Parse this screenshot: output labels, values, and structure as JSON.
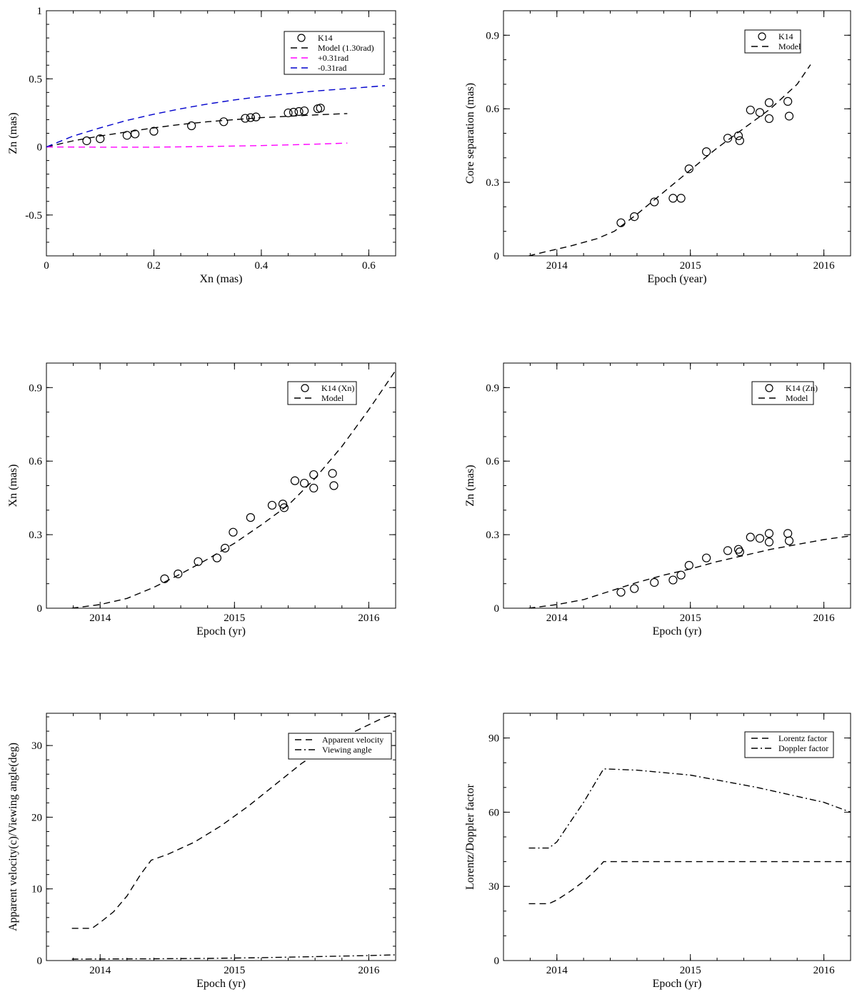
{
  "chart_data": [
    {
      "id": "p1",
      "type": "scatter",
      "xlabel": "Xn (mas)",
      "ylabel": "Zn (mas)",
      "xlim": [
        0,
        0.65
      ],
      "ylim": [
        -0.8,
        1.0
      ],
      "xticks": [
        0,
        0.2,
        0.4,
        0.6
      ],
      "xtick_labels": [
        "0",
        "0.2",
        "0.4",
        "0.6"
      ],
      "yticks": [
        -0.5,
        0,
        0.5,
        1
      ],
      "ytick_labels": [
        "-0.5",
        "0",
        "0.5",
        "1"
      ],
      "xminor": 0.05,
      "yminor": 0.1,
      "legend": [
        {
          "label": "K14",
          "style": "circle",
          "color": "#000000"
        },
        {
          "label": "Model (1.30rad)",
          "style": "dashed",
          "color": "#000000"
        },
        {
          "label": "+0.31rad",
          "style": "dashed",
          "color": "#ff00ff"
        },
        {
          "label": "-0.31rad",
          "style": "dashed",
          "color": "#0000cc"
        }
      ],
      "series": [
        {
          "name": "K14",
          "style": "circle",
          "color": "#000000",
          "x": [
            0.075,
            0.1,
            0.15,
            0.165,
            0.2,
            0.27,
            0.33,
            0.37,
            0.38,
            0.39,
            0.45,
            0.46,
            0.47,
            0.48,
            0.505,
            0.51
          ],
          "y": [
            0.045,
            0.06,
            0.085,
            0.095,
            0.115,
            0.155,
            0.185,
            0.21,
            0.215,
            0.22,
            0.25,
            0.255,
            0.26,
            0.265,
            0.28,
            0.285
          ]
        },
        {
          "name": "Model (1.30rad)",
          "style": "dashed",
          "color": "#000000",
          "x": [
            0,
            0.05,
            0.1,
            0.15,
            0.2,
            0.25,
            0.3,
            0.35,
            0.4,
            0.45,
            0.5,
            0.56
          ],
          "y": [
            0,
            0.045,
            0.08,
            0.11,
            0.14,
            0.165,
            0.185,
            0.2,
            0.215,
            0.225,
            0.235,
            0.245
          ]
        },
        {
          "name": "+0.31rad",
          "style": "dashed",
          "color": "#ff00ff",
          "x": [
            0,
            0.1,
            0.2,
            0.3,
            0.4,
            0.5,
            0.56
          ],
          "y": [
            0,
            -0.002,
            -0.002,
            0.003,
            0.01,
            0.02,
            0.028
          ]
        },
        {
          "name": "-0.31rad",
          "style": "dashed",
          "color": "#0000cc",
          "x": [
            0,
            0.05,
            0.1,
            0.15,
            0.2,
            0.25,
            0.3,
            0.35,
            0.4,
            0.45,
            0.5,
            0.55,
            0.6,
            0.63
          ],
          "y": [
            0,
            0.08,
            0.14,
            0.195,
            0.24,
            0.28,
            0.315,
            0.345,
            0.37,
            0.39,
            0.41,
            0.425,
            0.44,
            0.45
          ]
        }
      ]
    },
    {
      "id": "p2",
      "type": "scatter",
      "xlabel": "Epoch (year)",
      "ylabel": "Core separation (mas)",
      "xlim": [
        2013.6,
        2016.2
      ],
      "ylim": [
        0,
        1.0
      ],
      "xticks": [
        2014,
        2015,
        2016
      ],
      "xtick_labels": [
        "2014",
        "2015",
        "2016"
      ],
      "yticks": [
        0,
        0.3,
        0.6,
        0.9
      ],
      "ytick_labels": [
        "0",
        "0.3",
        "0.6",
        "0.9"
      ],
      "xminor": 0.2,
      "yminor": 0.1,
      "legend": [
        {
          "label": "K14",
          "style": "circle",
          "color": "#000000"
        },
        {
          "label": "Model",
          "style": "dashed",
          "color": "#000000"
        }
      ],
      "series": [
        {
          "name": "K14",
          "style": "circle",
          "color": "#000000",
          "x": [
            2014.48,
            2014.58,
            2014.73,
            2014.87,
            2014.93,
            2014.99,
            2015.12,
            2015.28,
            2015.36,
            2015.37,
            2015.45,
            2015.52,
            2015.59,
            2015.59,
            2015.73,
            2015.74
          ],
          "y": [
            0.135,
            0.16,
            0.22,
            0.235,
            0.235,
            0.355,
            0.425,
            0.48,
            0.49,
            0.47,
            0.595,
            0.585,
            0.625,
            0.56,
            0.63,
            0.57
          ]
        },
        {
          "name": "Model",
          "style": "dashed",
          "color": "#000000",
          "x": [
            2013.79,
            2013.9,
            2014.1,
            2014.3,
            2014.43,
            2014.6,
            2014.8,
            2015.0,
            2015.2,
            2015.4,
            2015.6,
            2015.8,
            2015.9
          ],
          "y": [
            0,
            0.015,
            0.04,
            0.07,
            0.1,
            0.17,
            0.26,
            0.35,
            0.44,
            0.52,
            0.6,
            0.7,
            0.78
          ]
        }
      ]
    },
    {
      "id": "p3",
      "type": "scatter",
      "xlabel": "Epoch (yr)",
      "ylabel": "Xn (mas)",
      "xlim": [
        2013.6,
        2016.2
      ],
      "ylim": [
        0,
        1.0
      ],
      "xticks": [
        2014,
        2015,
        2016
      ],
      "xtick_labels": [
        "2014",
        "2015",
        "2016"
      ],
      "yticks": [
        0,
        0.3,
        0.6,
        0.9
      ],
      "ytick_labels": [
        "0",
        "0.3",
        "0.6",
        "0.9"
      ],
      "xminor": 0.2,
      "yminor": 0.1,
      "legend": [
        {
          "label": "K14 (Xn)",
          "style": "circle",
          "color": "#000000"
        },
        {
          "label": "Model",
          "style": "dashed",
          "color": "#000000"
        }
      ],
      "series": [
        {
          "name": "K14 (Xn)",
          "style": "circle",
          "color": "#000000",
          "x": [
            2014.48,
            2014.58,
            2014.73,
            2014.87,
            2014.93,
            2014.99,
            2015.12,
            2015.28,
            2015.36,
            2015.37,
            2015.45,
            2015.52,
            2015.59,
            2015.59,
            2015.73,
            2015.74
          ],
          "y": [
            0.12,
            0.14,
            0.19,
            0.205,
            0.245,
            0.31,
            0.37,
            0.42,
            0.425,
            0.41,
            0.52,
            0.51,
            0.545,
            0.49,
            0.55,
            0.5
          ]
        },
        {
          "name": "Model",
          "style": "dashed",
          "color": "#000000",
          "x": [
            2013.79,
            2014.0,
            2014.2,
            2014.4,
            2014.6,
            2014.8,
            2015.0,
            2015.2,
            2015.4,
            2015.6,
            2015.8,
            2016.0,
            2016.2
          ],
          "y": [
            0,
            0.015,
            0.04,
            0.085,
            0.14,
            0.2,
            0.265,
            0.34,
            0.42,
            0.53,
            0.66,
            0.81,
            0.97
          ]
        }
      ]
    },
    {
      "id": "p4",
      "type": "scatter",
      "xlabel": "Epoch (yr)",
      "ylabel": "Zn (mas)",
      "xlim": [
        2013.6,
        2016.2
      ],
      "ylim": [
        0,
        1.0
      ],
      "xticks": [
        2014,
        2015,
        2016
      ],
      "xtick_labels": [
        "2014",
        "2015",
        "2016"
      ],
      "yticks": [
        0,
        0.3,
        0.6,
        0.9
      ],
      "ytick_labels": [
        "0",
        "0.3",
        "0.6",
        "0.9"
      ],
      "xminor": 0.2,
      "yminor": 0.1,
      "legend": [
        {
          "label": "K14 (Zn)",
          "style": "circle",
          "color": "#000000"
        },
        {
          "label": "Model",
          "style": "dashed",
          "color": "#000000"
        }
      ],
      "series": [
        {
          "name": "K14 (Zn)",
          "style": "circle",
          "color": "#000000",
          "x": [
            2014.48,
            2014.58,
            2014.73,
            2014.87,
            2014.93,
            2014.99,
            2015.12,
            2015.28,
            2015.36,
            2015.37,
            2015.45,
            2015.52,
            2015.59,
            2015.59,
            2015.73,
            2015.74
          ],
          "y": [
            0.065,
            0.08,
            0.105,
            0.115,
            0.135,
            0.175,
            0.205,
            0.235,
            0.24,
            0.23,
            0.29,
            0.285,
            0.305,
            0.27,
            0.305,
            0.275
          ]
        },
        {
          "name": "Model",
          "style": "dashed",
          "color": "#000000",
          "x": [
            2013.79,
            2014.0,
            2014.2,
            2014.4,
            2014.6,
            2014.8,
            2015.0,
            2015.2,
            2015.4,
            2015.6,
            2015.8,
            2016.0,
            2016.2
          ],
          "y": [
            0,
            0.015,
            0.035,
            0.07,
            0.105,
            0.135,
            0.16,
            0.19,
            0.215,
            0.24,
            0.26,
            0.28,
            0.295
          ]
        }
      ]
    },
    {
      "id": "p5",
      "type": "line",
      "xlabel": "Epoch (yr)",
      "ylabel": "Apparent velocity(c)/Viewing angle(deg)",
      "xlim": [
        2013.6,
        2016.2
      ],
      "ylim": [
        0,
        34.5
      ],
      "xticks": [
        2014,
        2015,
        2016
      ],
      "xtick_labels": [
        "2014",
        "2015",
        "2016"
      ],
      "yticks": [
        0,
        10,
        20,
        30
      ],
      "ytick_labels": [
        "0",
        "10",
        "20",
        "30"
      ],
      "xminor": 0.2,
      "yminor": 2,
      "legend": [
        {
          "label": "Apparent velocity",
          "style": "dashed",
          "color": "#000000"
        },
        {
          "label": "Viewing angle",
          "style": "dashdot",
          "color": "#000000"
        }
      ],
      "series": [
        {
          "name": "Apparent velocity",
          "style": "dashed",
          "color": "#000000",
          "x": [
            2013.79,
            2013.94,
            2014.0,
            2014.1,
            2014.2,
            2014.3,
            2014.38,
            2014.5,
            2014.7,
            2014.9,
            2015.1,
            2015.3,
            2015.5,
            2015.7,
            2015.9,
            2016.1,
            2016.2
          ],
          "y": [
            4.5,
            4.5,
            5.3,
            6.8,
            9.0,
            12.0,
            14.0,
            14.8,
            16.5,
            18.8,
            21.5,
            24.5,
            27.5,
            30.0,
            32.0,
            33.8,
            34.5
          ]
        },
        {
          "name": "Viewing angle",
          "style": "dashdot",
          "color": "#000000",
          "x": [
            2013.79,
            2014.0,
            2014.4,
            2014.8,
            2015.2,
            2015.6,
            2016.0,
            2016.2
          ],
          "y": [
            0.2,
            0.22,
            0.25,
            0.3,
            0.4,
            0.55,
            0.7,
            0.8
          ]
        }
      ]
    },
    {
      "id": "p6",
      "type": "line",
      "xlabel": "Epoch (yr)",
      "ylabel": "Lorentz/Doppler factor",
      "xlim": [
        2013.6,
        2016.2
      ],
      "ylim": [
        0,
        100
      ],
      "xticks": [
        2014,
        2015,
        2016
      ],
      "xtick_labels": [
        "2014",
        "2015",
        "2016"
      ],
      "yticks": [
        0,
        30,
        60,
        90
      ],
      "ytick_labels": [
        "0",
        "30",
        "60",
        "90"
      ],
      "xminor": 0.2,
      "yminor": 10,
      "legend": [
        {
          "label": "Lorentz factor",
          "style": "dashed",
          "color": "#000000"
        },
        {
          "label": "Doppler factor",
          "style": "dashdot",
          "color": "#000000"
        }
      ],
      "series": [
        {
          "name": "Lorentz factor",
          "style": "dashed",
          "color": "#000000",
          "x": [
            2013.79,
            2013.94,
            2014.0,
            2014.1,
            2014.2,
            2014.3,
            2014.35,
            2014.6,
            2015.0,
            2015.5,
            2016.0,
            2016.2
          ],
          "y": [
            23,
            23,
            24.5,
            28,
            32,
            37,
            40,
            40,
            40,
            40,
            40,
            40
          ]
        },
        {
          "name": "Doppler factor",
          "style": "dashdot",
          "color": "#000000",
          "x": [
            2013.79,
            2013.94,
            2014.0,
            2014.1,
            2014.2,
            2014.3,
            2014.35,
            2014.6,
            2015.0,
            2015.5,
            2016.0,
            2016.2
          ],
          "y": [
            45.5,
            45.5,
            48,
            56,
            64,
            73,
            77.5,
            77,
            75,
            70,
            64,
            60
          ]
        }
      ]
    }
  ]
}
